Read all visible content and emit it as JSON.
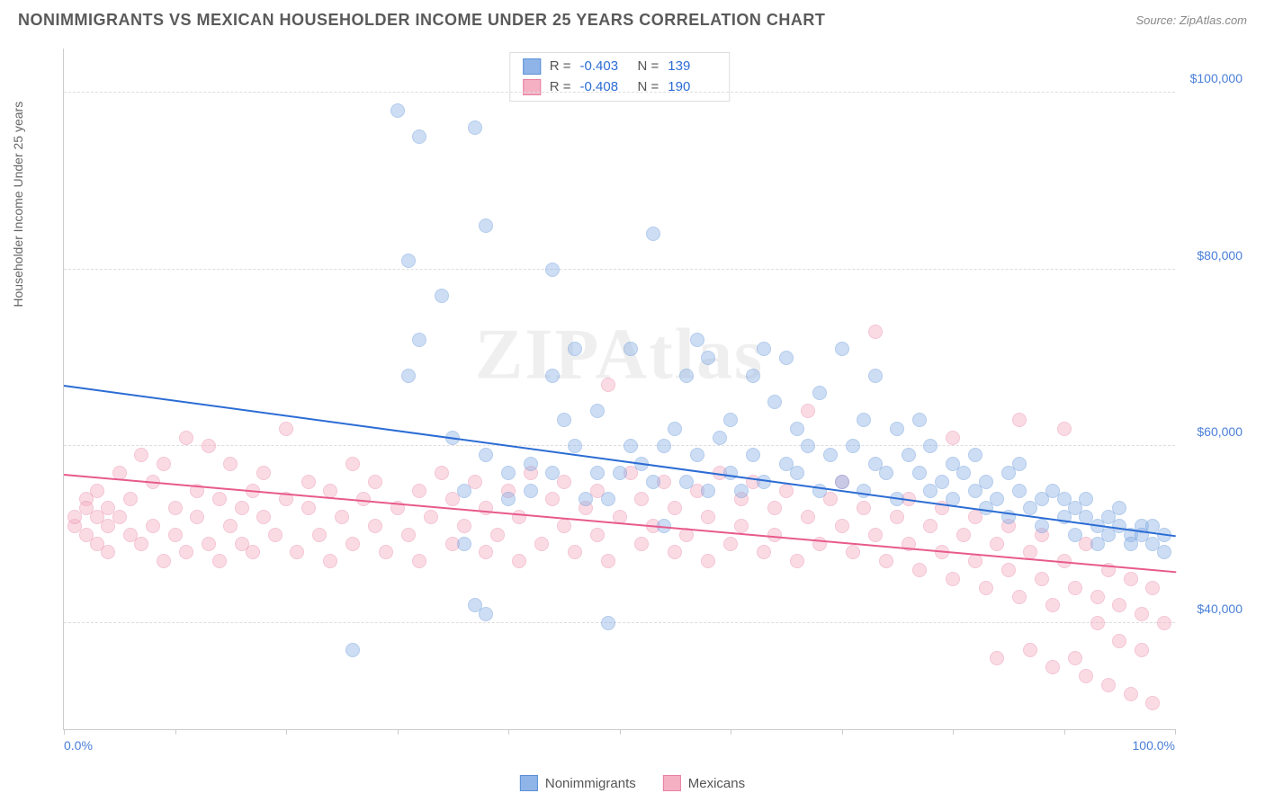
{
  "title": "NONIMMIGRANTS VS MEXICAN HOUSEHOLDER INCOME UNDER 25 YEARS CORRELATION CHART",
  "source": "Source: ZipAtlas.com",
  "watermark": "ZIPAtlas",
  "chart": {
    "type": "scatter",
    "ylabel": "Householder Income Under 25 years",
    "xlim": [
      0,
      100
    ],
    "ylim": [
      28000,
      105000
    ],
    "xtick_labels": {
      "left": "0.0%",
      "right": "100.0%"
    },
    "xticks": [
      0,
      10,
      20,
      30,
      40,
      50,
      60,
      70,
      80,
      90,
      100
    ],
    "yticks": [
      40000,
      60000,
      80000,
      100000
    ],
    "ytick_labels": [
      "$40,000",
      "$60,000",
      "$80,000",
      "$100,000"
    ],
    "grid_color": "#dddddd",
    "axis_color": "#cccccc",
    "background_color": "#ffffff",
    "marker_radius": 8,
    "marker_opacity": 0.45,
    "series": [
      {
        "name": "Nonimmigrants",
        "color_fill": "#8fb4e8",
        "color_stroke": "#5a8fd6",
        "trend": {
          "x1": 0,
          "y1": 67000,
          "x2": 100,
          "y2": 50000,
          "color": "#2b6cd4",
          "width": 2
        },
        "stats": {
          "R": "-0.403",
          "N": "139"
        },
        "points": [
          [
            26,
            37000
          ],
          [
            30,
            98000
          ],
          [
            31,
            81000
          ],
          [
            31,
            68000
          ],
          [
            32,
            72000
          ],
          [
            32,
            95000
          ],
          [
            34,
            77000
          ],
          [
            35,
            61000
          ],
          [
            36,
            49000
          ],
          [
            36,
            55000
          ],
          [
            37,
            96000
          ],
          [
            37,
            42000
          ],
          [
            38,
            41000
          ],
          [
            38,
            85000
          ],
          [
            38,
            59000
          ],
          [
            40,
            54000
          ],
          [
            40,
            57000
          ],
          [
            42,
            58000
          ],
          [
            42,
            55000
          ],
          [
            44,
            80000
          ],
          [
            44,
            68000
          ],
          [
            44,
            57000
          ],
          [
            45,
            63000
          ],
          [
            46,
            60000
          ],
          [
            46,
            71000
          ],
          [
            47,
            54000
          ],
          [
            48,
            57000
          ],
          [
            48,
            64000
          ],
          [
            49,
            54000
          ],
          [
            49,
            40000
          ],
          [
            50,
            57000
          ],
          [
            51,
            71000
          ],
          [
            51,
            60000
          ],
          [
            52,
            58000
          ],
          [
            53,
            84000
          ],
          [
            53,
            56000
          ],
          [
            54,
            60000
          ],
          [
            54,
            51000
          ],
          [
            55,
            62000
          ],
          [
            56,
            68000
          ],
          [
            56,
            56000
          ],
          [
            57,
            72000
          ],
          [
            57,
            59000
          ],
          [
            58,
            55000
          ],
          [
            58,
            70000
          ],
          [
            59,
            61000
          ],
          [
            60,
            57000
          ],
          [
            60,
            63000
          ],
          [
            61,
            55000
          ],
          [
            62,
            68000
          ],
          [
            62,
            59000
          ],
          [
            63,
            71000
          ],
          [
            63,
            56000
          ],
          [
            64,
            65000
          ],
          [
            65,
            58000
          ],
          [
            65,
            70000
          ],
          [
            66,
            57000
          ],
          [
            66,
            62000
          ],
          [
            67,
            60000
          ],
          [
            68,
            66000
          ],
          [
            68,
            55000
          ],
          [
            69,
            59000
          ],
          [
            70,
            71000
          ],
          [
            70,
            56000
          ],
          [
            71,
            60000
          ],
          [
            72,
            63000
          ],
          [
            72,
            55000
          ],
          [
            73,
            68000
          ],
          [
            73,
            58000
          ],
          [
            74,
            57000
          ],
          [
            75,
            62000
          ],
          [
            75,
            54000
          ],
          [
            76,
            59000
          ],
          [
            77,
            57000
          ],
          [
            77,
            63000
          ],
          [
            78,
            55000
          ],
          [
            78,
            60000
          ],
          [
            79,
            56000
          ],
          [
            80,
            58000
          ],
          [
            80,
            54000
          ],
          [
            81,
            57000
          ],
          [
            82,
            55000
          ],
          [
            82,
            59000
          ],
          [
            83,
            53000
          ],
          [
            83,
            56000
          ],
          [
            84,
            54000
          ],
          [
            85,
            57000
          ],
          [
            85,
            52000
          ],
          [
            86,
            55000
          ],
          [
            86,
            58000
          ],
          [
            87,
            53000
          ],
          [
            88,
            54000
          ],
          [
            88,
            51000
          ],
          [
            89,
            55000
          ],
          [
            90,
            52000
          ],
          [
            90,
            54000
          ],
          [
            91,
            53000
          ],
          [
            91,
            50000
          ],
          [
            92,
            52000
          ],
          [
            92,
            54000
          ],
          [
            93,
            51000
          ],
          [
            93,
            49000
          ],
          [
            94,
            52000
          ],
          [
            94,
            50000
          ],
          [
            95,
            51000
          ],
          [
            95,
            53000
          ],
          [
            96,
            50000
          ],
          [
            96,
            49000
          ],
          [
            97,
            51000
          ],
          [
            97,
            50000
          ],
          [
            98,
            49000
          ],
          [
            98,
            51000
          ],
          [
            99,
            50000
          ],
          [
            99,
            48000
          ]
        ]
      },
      {
        "name": "Mexicans",
        "color_fill": "#f5b0c4",
        "color_stroke": "#e87fa3",
        "trend": {
          "x1": 0,
          "y1": 57000,
          "x2": 100,
          "y2": 46000,
          "color": "#e85a8c",
          "width": 2
        },
        "stats": {
          "R": "-0.408",
          "N": "190"
        },
        "points": [
          [
            1,
            51000
          ],
          [
            1,
            52000
          ],
          [
            2,
            50000
          ],
          [
            2,
            54000
          ],
          [
            2,
            53000
          ],
          [
            3,
            49000
          ],
          [
            3,
            52000
          ],
          [
            3,
            55000
          ],
          [
            4,
            51000
          ],
          [
            4,
            48000
          ],
          [
            4,
            53000
          ],
          [
            5,
            52000
          ],
          [
            5,
            57000
          ],
          [
            6,
            50000
          ],
          [
            6,
            54000
          ],
          [
            7,
            59000
          ],
          [
            7,
            49000
          ],
          [
            8,
            56000
          ],
          [
            8,
            51000
          ],
          [
            9,
            47000
          ],
          [
            9,
            58000
          ],
          [
            10,
            53000
          ],
          [
            10,
            50000
          ],
          [
            11,
            61000
          ],
          [
            11,
            48000
          ],
          [
            12,
            55000
          ],
          [
            12,
            52000
          ],
          [
            13,
            49000
          ],
          [
            13,
            60000
          ],
          [
            14,
            54000
          ],
          [
            14,
            47000
          ],
          [
            15,
            58000
          ],
          [
            15,
            51000
          ],
          [
            16,
            53000
          ],
          [
            16,
            49000
          ],
          [
            17,
            55000
          ],
          [
            17,
            48000
          ],
          [
            18,
            52000
          ],
          [
            18,
            57000
          ],
          [
            19,
            50000
          ],
          [
            20,
            54000
          ],
          [
            20,
            62000
          ],
          [
            21,
            48000
          ],
          [
            22,
            53000
          ],
          [
            22,
            56000
          ],
          [
            23,
            50000
          ],
          [
            24,
            55000
          ],
          [
            24,
            47000
          ],
          [
            25,
            52000
          ],
          [
            26,
            58000
          ],
          [
            26,
            49000
          ],
          [
            27,
            54000
          ],
          [
            28,
            51000
          ],
          [
            28,
            56000
          ],
          [
            29,
            48000
          ],
          [
            30,
            53000
          ],
          [
            31,
            50000
          ],
          [
            32,
            55000
          ],
          [
            32,
            47000
          ],
          [
            33,
            52000
          ],
          [
            34,
            57000
          ],
          [
            35,
            49000
          ],
          [
            35,
            54000
          ],
          [
            36,
            51000
          ],
          [
            37,
            56000
          ],
          [
            38,
            48000
          ],
          [
            38,
            53000
          ],
          [
            39,
            50000
          ],
          [
            40,
            55000
          ],
          [
            41,
            47000
          ],
          [
            41,
            52000
          ],
          [
            42,
            57000
          ],
          [
            43,
            49000
          ],
          [
            44,
            54000
          ],
          [
            45,
            51000
          ],
          [
            45,
            56000
          ],
          [
            46,
            48000
          ],
          [
            47,
            53000
          ],
          [
            48,
            50000
          ],
          [
            48,
            55000
          ],
          [
            49,
            67000
          ],
          [
            49,
            47000
          ],
          [
            50,
            52000
          ],
          [
            51,
            57000
          ],
          [
            52,
            49000
          ],
          [
            52,
            54000
          ],
          [
            53,
            51000
          ],
          [
            54,
            56000
          ],
          [
            55,
            48000
          ],
          [
            55,
            53000
          ],
          [
            56,
            50000
          ],
          [
            57,
            55000
          ],
          [
            58,
            47000
          ],
          [
            58,
            52000
          ],
          [
            59,
            57000
          ],
          [
            60,
            49000
          ],
          [
            61,
            54000
          ],
          [
            61,
            51000
          ],
          [
            62,
            56000
          ],
          [
            63,
            48000
          ],
          [
            64,
            53000
          ],
          [
            64,
            50000
          ],
          [
            65,
            55000
          ],
          [
            66,
            47000
          ],
          [
            67,
            52000
          ],
          [
            67,
            64000
          ],
          [
            68,
            49000
          ],
          [
            69,
            54000
          ],
          [
            70,
            51000
          ],
          [
            70,
            56000
          ],
          [
            71,
            48000
          ],
          [
            72,
            53000
          ],
          [
            73,
            50000
          ],
          [
            73,
            73000
          ],
          [
            74,
            47000
          ],
          [
            75,
            52000
          ],
          [
            76,
            49000
          ],
          [
            76,
            54000
          ],
          [
            77,
            46000
          ],
          [
            78,
            51000
          ],
          [
            79,
            48000
          ],
          [
            79,
            53000
          ],
          [
            80,
            45000
          ],
          [
            80,
            61000
          ],
          [
            81,
            50000
          ],
          [
            82,
            47000
          ],
          [
            82,
            52000
          ],
          [
            83,
            44000
          ],
          [
            84,
            49000
          ],
          [
            84,
            36000
          ],
          [
            85,
            46000
          ],
          [
            85,
            51000
          ],
          [
            86,
            43000
          ],
          [
            86,
            63000
          ],
          [
            87,
            48000
          ],
          [
            87,
            37000
          ],
          [
            88,
            45000
          ],
          [
            88,
            50000
          ],
          [
            89,
            42000
          ],
          [
            89,
            35000
          ],
          [
            90,
            47000
          ],
          [
            90,
            62000
          ],
          [
            91,
            44000
          ],
          [
            91,
            36000
          ],
          [
            92,
            49000
          ],
          [
            92,
            34000
          ],
          [
            93,
            43000
          ],
          [
            93,
            40000
          ],
          [
            94,
            46000
          ],
          [
            94,
            33000
          ],
          [
            95,
            42000
          ],
          [
            95,
            38000
          ],
          [
            96,
            45000
          ],
          [
            96,
            32000
          ],
          [
            97,
            41000
          ],
          [
            97,
            37000
          ],
          [
            98,
            44000
          ],
          [
            98,
            31000
          ],
          [
            99,
            40000
          ]
        ]
      }
    ]
  },
  "legend": {
    "items": [
      {
        "label": "Nonimmigrants",
        "fill": "#8fb4e8",
        "stroke": "#5a8fd6"
      },
      {
        "label": "Mexicans",
        "fill": "#f5b0c4",
        "stroke": "#e87fa3"
      }
    ]
  }
}
